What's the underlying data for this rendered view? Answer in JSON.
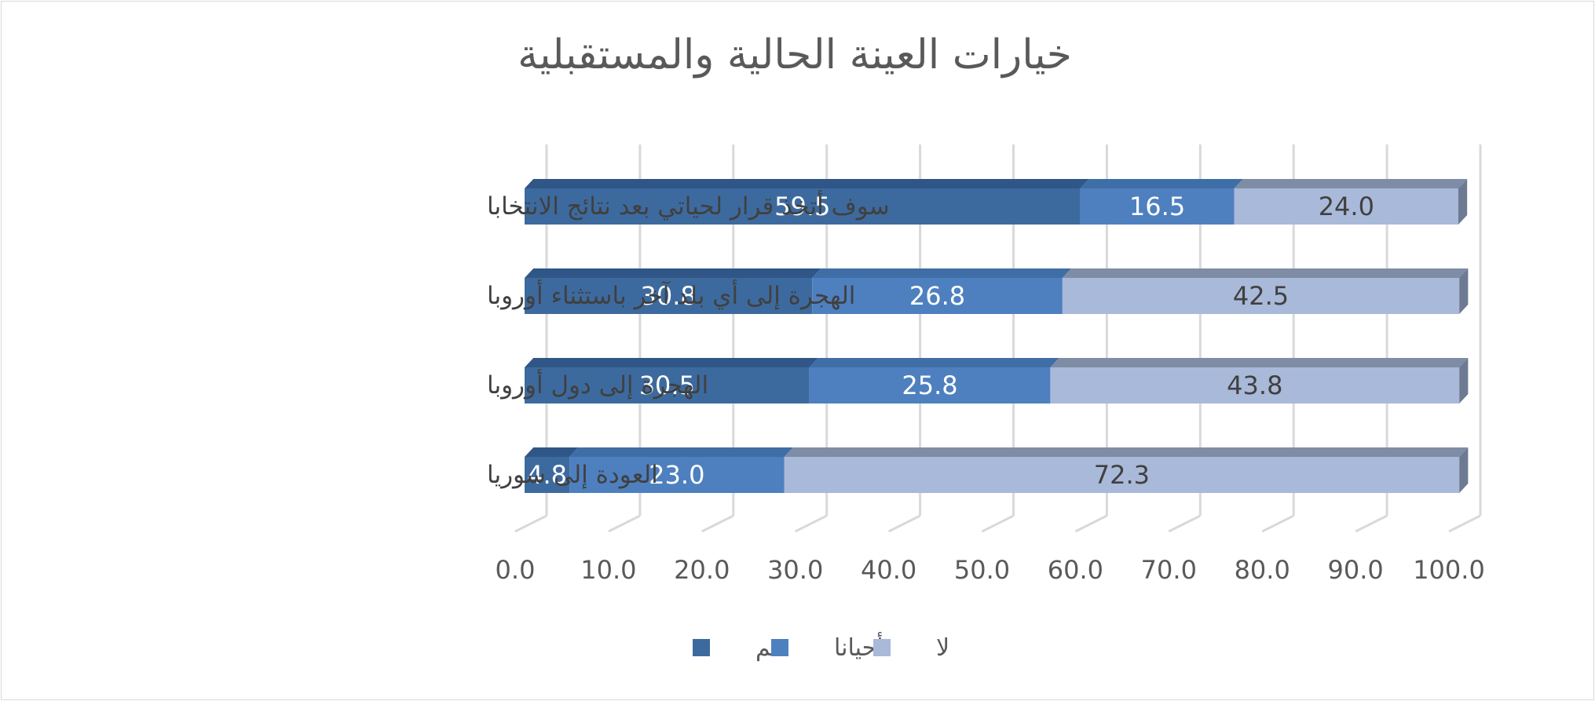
{
  "chart_data": {
    "type": "bar",
    "orientation": "horizontal",
    "stacked": true,
    "three_d": true,
    "title": "خيارات العينة الحالية والمستقبلية",
    "categories": [
      "سوف أتخذ قرار لحياتي بعد نتائج الانتخابا",
      "الهجرة إلى أي بلد آخر باستثناء أوروبا",
      "الهجرة إلى دول أوروبا",
      "العودة إلى سوريا"
    ],
    "series": [
      {
        "name": "نعم",
        "values": [
          59.5,
          30.8,
          30.5,
          4.8
        ],
        "labels": [
          "59.5",
          "30.8",
          "30.5",
          "4.8"
        ],
        "color": "#3d6a9e",
        "top_color": "#2f5686",
        "label_color": "#ffffff"
      },
      {
        "name": "أحيانا",
        "values": [
          16.5,
          26.8,
          25.8,
          23.0
        ],
        "labels": [
          "16.5",
          "26.8",
          "25.8",
          "23.0"
        ],
        "color": "#4e80c0",
        "top_color": "#3f6ea6",
        "label_color": "#ffffff"
      },
      {
        "name": "لا",
        "values": [
          24.0,
          42.5,
          43.8,
          72.3
        ],
        "labels": [
          "24.0",
          "42.5",
          "43.8",
          "72.3"
        ],
        "color": "#a9b9d9",
        "top_color": "#7f8ca5",
        "label_color": "#404040"
      }
    ],
    "xlim": [
      0,
      100
    ],
    "xticks": [
      "0.0",
      "10.0",
      "20.0",
      "30.0",
      "40.0",
      "50.0",
      "60.0",
      "70.0",
      "80.0",
      "90.0",
      "100.0"
    ],
    "grid": true,
    "legend": {
      "position": "bottom"
    }
  }
}
